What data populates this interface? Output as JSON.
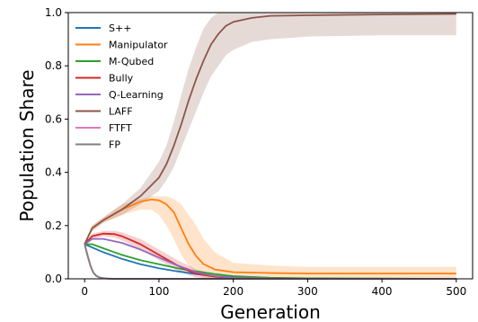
{
  "chart_data": {
    "type": "line",
    "title": "",
    "xlabel": "Generation",
    "ylabel": "Population Share",
    "xlim": [
      -22,
      522
    ],
    "ylim": [
      0.0,
      1.0
    ],
    "xticks": [
      0,
      100,
      200,
      300,
      400,
      500
    ],
    "yticks": [
      0.0,
      0.2,
      0.4,
      0.6,
      0.8,
      1.0
    ],
    "xtick_labels": [
      "0",
      "100",
      "200",
      "300",
      "400",
      "500"
    ],
    "ytick_labels": [
      "0.0",
      "0.2",
      "0.4",
      "0.6",
      "0.8",
      "1.0"
    ],
    "grid": false,
    "legend_position": "top-left",
    "series": [
      {
        "name": "S++",
        "color": "#1f77b4",
        "x": [
          0,
          25,
          50,
          75,
          100,
          125,
          150,
          175,
          200,
          250,
          300,
          400,
          500
        ],
        "y": [
          0.13,
          0.1,
          0.075,
          0.055,
          0.04,
          0.028,
          0.018,
          0.01,
          0.005,
          0.002,
          0.001,
          0.0,
          0.0
        ]
      },
      {
        "name": "Manipulator",
        "color": "#ff7f0e",
        "x": [
          0,
          10,
          25,
          50,
          75,
          90,
          100,
          110,
          120,
          130,
          140,
          150,
          160,
          175,
          200,
          250,
          300,
          400,
          500
        ],
        "y": [
          0.13,
          0.19,
          0.22,
          0.26,
          0.29,
          0.298,
          0.295,
          0.28,
          0.25,
          0.19,
          0.13,
          0.085,
          0.055,
          0.035,
          0.025,
          0.022,
          0.02,
          0.02,
          0.02
        ],
        "band_lower": [
          0.13,
          0.18,
          0.21,
          0.24,
          0.26,
          0.26,
          0.24,
          0.2,
          0.15,
          0.09,
          0.05,
          0.02,
          0.005,
          0.0,
          0.0,
          0.0,
          0.0,
          0.0,
          0.0
        ],
        "band_upper": [
          0.13,
          0.2,
          0.23,
          0.28,
          0.3,
          0.31,
          0.31,
          0.31,
          0.3,
          0.28,
          0.24,
          0.2,
          0.15,
          0.1,
          0.06,
          0.05,
          0.045,
          0.045,
          0.045
        ]
      },
      {
        "name": "M-Qubed",
        "color": "#2ca02c",
        "x": [
          0,
          10,
          25,
          50,
          75,
          100,
          125,
          150,
          175,
          200,
          250,
          300,
          400,
          500
        ],
        "y": [
          0.13,
          0.13,
          0.115,
          0.09,
          0.07,
          0.055,
          0.04,
          0.028,
          0.018,
          0.01,
          0.004,
          0.002,
          0.001,
          0.0
        ]
      },
      {
        "name": "Bully",
        "color": "#d62728",
        "x": [
          0,
          10,
          25,
          40,
          50,
          75,
          100,
          125,
          140,
          150,
          175,
          200,
          250,
          300,
          400,
          500
        ],
        "y": [
          0.13,
          0.16,
          0.17,
          0.168,
          0.16,
          0.13,
          0.09,
          0.05,
          0.03,
          0.02,
          0.008,
          0.003,
          0.001,
          0.0,
          0.0,
          0.0
        ],
        "band_lower": [
          0.13,
          0.15,
          0.16,
          0.155,
          0.145,
          0.11,
          0.07,
          0.03,
          0.015,
          0.005,
          0.0,
          0.0,
          0.0,
          0.0,
          0.0,
          0.0
        ],
        "band_upper": [
          0.13,
          0.17,
          0.18,
          0.18,
          0.175,
          0.15,
          0.11,
          0.07,
          0.05,
          0.035,
          0.018,
          0.008,
          0.003,
          0.001,
          0.0,
          0.0
        ]
      },
      {
        "name": "Q-Learning",
        "color": "#9467bd",
        "x": [
          0,
          10,
          25,
          50,
          75,
          100,
          125,
          150,
          175,
          200,
          250,
          300,
          400,
          500
        ],
        "y": [
          0.13,
          0.15,
          0.15,
          0.135,
          0.11,
          0.08,
          0.05,
          0.025,
          0.01,
          0.004,
          0.001,
          0.0,
          0.0,
          0.0
        ]
      },
      {
        "name": "LAFF",
        "color": "#8c564b",
        "x": [
          0,
          10,
          25,
          50,
          75,
          100,
          110,
          120,
          130,
          140,
          150,
          160,
          170,
          180,
          190,
          200,
          225,
          250,
          300,
          400,
          500
        ],
        "y": [
          0.13,
          0.19,
          0.22,
          0.26,
          0.31,
          0.38,
          0.43,
          0.5,
          0.58,
          0.67,
          0.75,
          0.82,
          0.88,
          0.92,
          0.95,
          0.965,
          0.98,
          0.988,
          0.99,
          0.993,
          0.995
        ],
        "band_lower": [
          0.13,
          0.18,
          0.21,
          0.24,
          0.28,
          0.33,
          0.37,
          0.42,
          0.49,
          0.56,
          0.63,
          0.7,
          0.76,
          0.8,
          0.84,
          0.86,
          0.89,
          0.9,
          0.91,
          0.915,
          0.915
        ],
        "band_upper": [
          0.13,
          0.2,
          0.23,
          0.28,
          0.34,
          0.44,
          0.5,
          0.59,
          0.69,
          0.79,
          0.87,
          0.94,
          0.98,
          1.0,
          1.0,
          1.0,
          1.0,
          1.0,
          1.0,
          1.0,
          1.0
        ]
      },
      {
        "name": "FTFT",
        "color": "#e377c2",
        "x": [
          0,
          2,
          4,
          6,
          8,
          10,
          12,
          15,
          18,
          22,
          30,
          40,
          50,
          100,
          500
        ],
        "y": [
          0.13,
          0.11,
          0.09,
          0.07,
          0.05,
          0.035,
          0.024,
          0.014,
          0.008,
          0.004,
          0.001,
          0.0,
          0.0,
          0.0,
          0.0
        ]
      },
      {
        "name": "FP",
        "color": "#7f7f7f",
        "x": [
          0,
          2,
          4,
          6,
          8,
          10,
          12,
          15,
          18,
          22,
          30,
          40,
          50,
          100,
          500
        ],
        "y": [
          0.13,
          0.105,
          0.085,
          0.065,
          0.047,
          0.033,
          0.022,
          0.012,
          0.007,
          0.003,
          0.001,
          0.0,
          0.0,
          0.0,
          0.0
        ]
      }
    ]
  }
}
